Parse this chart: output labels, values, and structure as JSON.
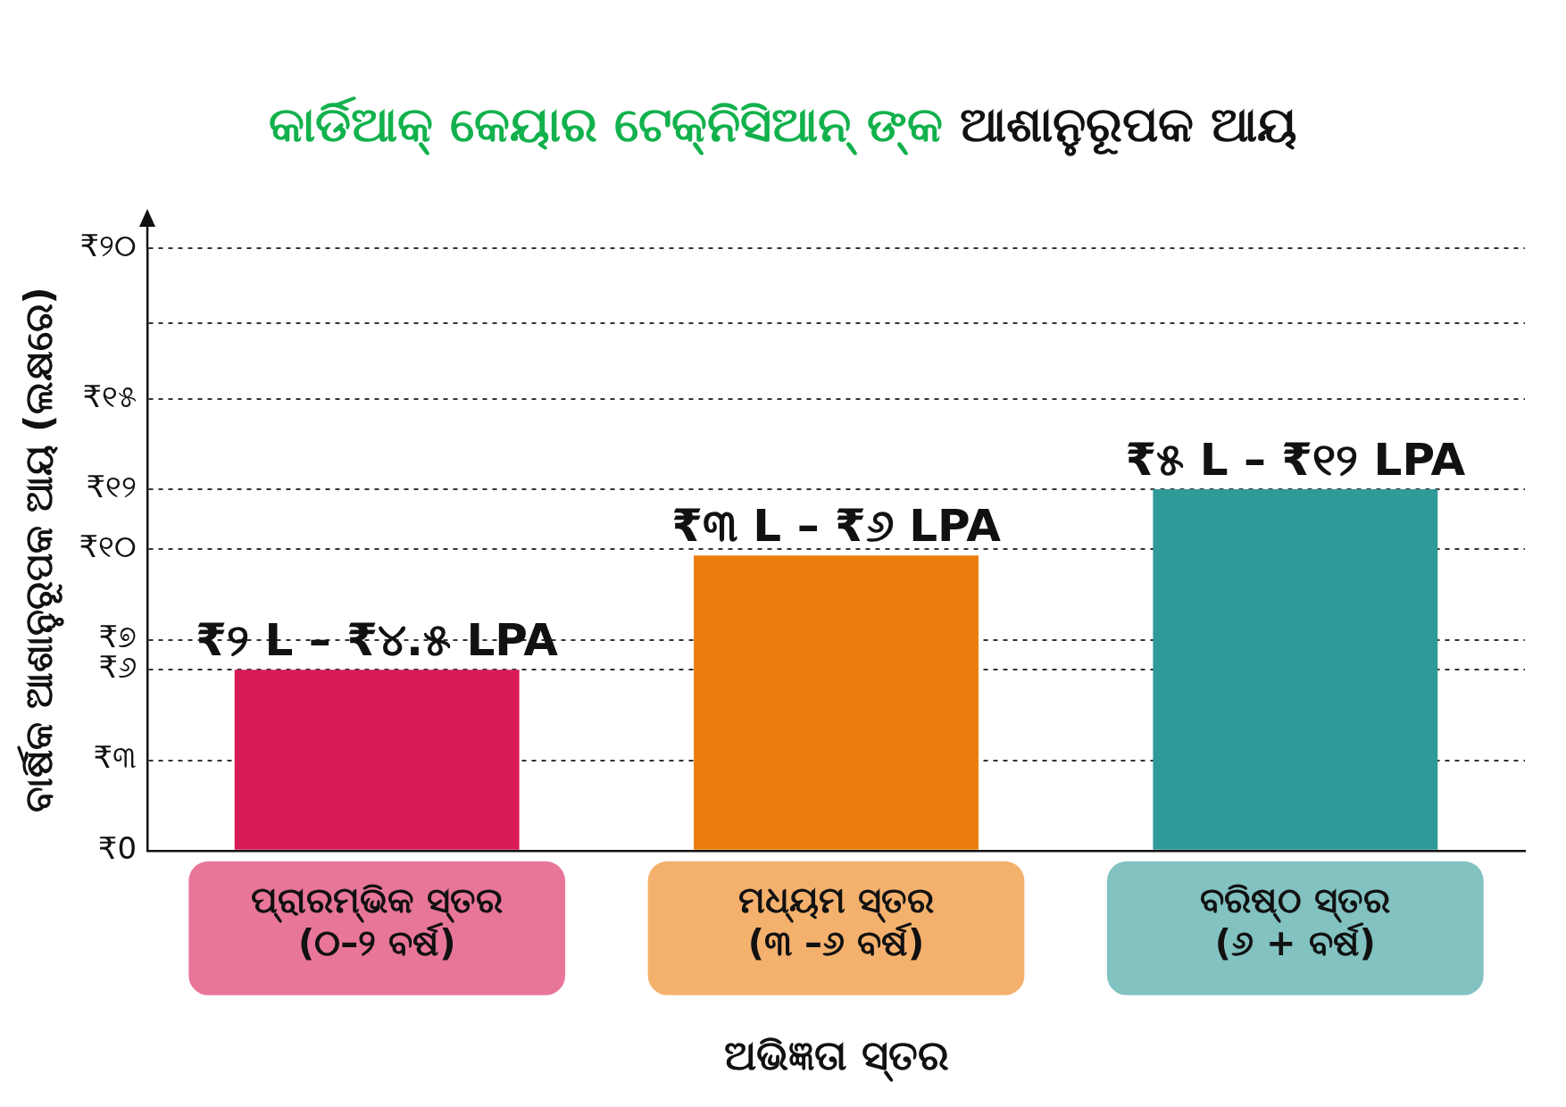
{
  "chart_data": {
    "type": "bar",
    "title": "କାର୍ଡିଆକ୍ କେୟାର ଟେକ୍ନିସିଆନ୍ ଙ୍କ ଆଶାନୁରୂପକ ଆୟ",
    "xlabel": "ଅଭିଜ୍ଞତା ସ୍ତର",
    "ylabel": "ବାର୍ଷିକ ଆଶାନୁରୂପକ ଆୟ (ଲକ୍ଷରେ)",
    "categories": [
      "ପ୍ରାରମ୍ଭିକ ସ୍ତର (୦–୨ ବର୍ଷ)",
      "ମଧ୍ୟମ ସ୍ତର (୩ –୬ ବର୍ଷ)",
      "ବରିଷ୍ଠ ସ୍ତର (୬ + ବର୍ଷ)"
    ],
    "values": [
      6,
      9.8,
      12
    ],
    "colors": [
      "#d81b55",
      "#ec7d0e",
      "#2f9a98"
    ],
    "value_labels": [
      "₹୨ L – ₹୪.୫ LPA",
      "₹୩ L – ₹୬ LPA",
      "₹୫ L – ₹୧୨ LPA"
    ],
    "ylim": [
      0,
      20
    ],
    "yticks": [
      {
        "value": 0,
        "label": "₹0"
      },
      {
        "value": 3,
        "label": "₹୩"
      },
      {
        "value": 6,
        "label": "₹୬"
      },
      {
        "value": 7,
        "label": "₹୭"
      },
      {
        "value": 10,
        "label": "₹୧୦"
      },
      {
        "value": 12,
        "label": "₹୧୨"
      },
      {
        "value": 15,
        "label": "₹୧୫"
      },
      {
        "value": 17.5,
        "label": null
      },
      {
        "value": 20,
        "label": "₹୨୦"
      }
    ],
    "grid": "y"
  }
}
